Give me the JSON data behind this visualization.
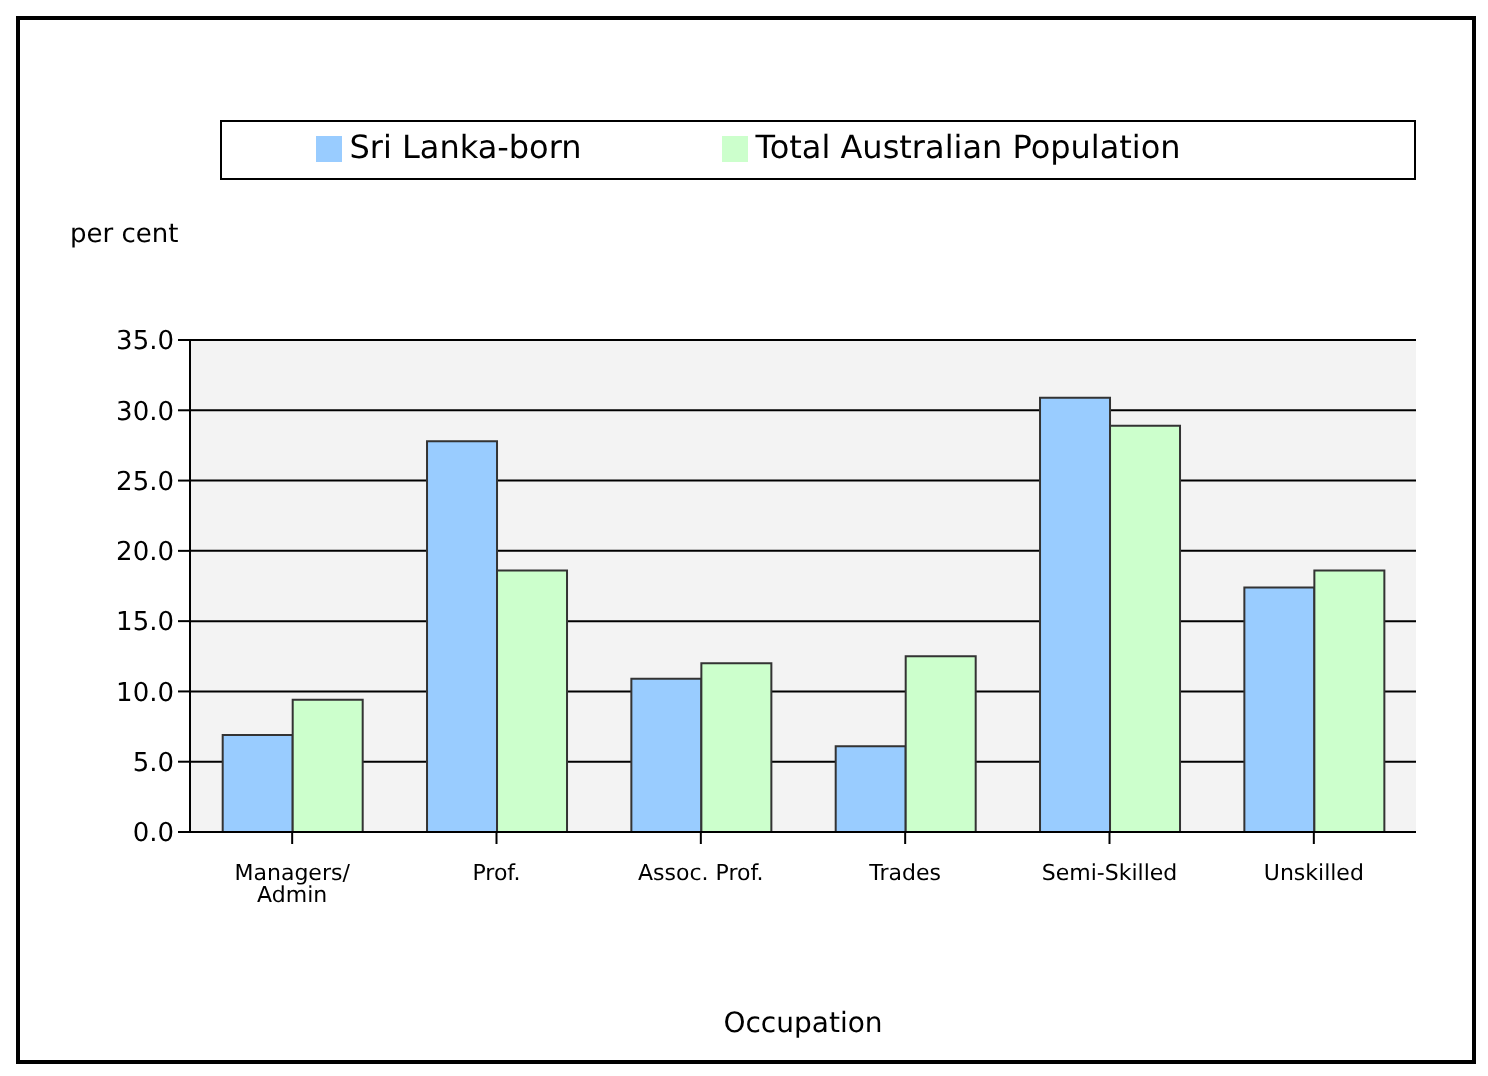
{
  "chart_data": {
    "type": "bar",
    "xlabel": "Occupation",
    "ylabel": "per cent",
    "categories": [
      "Managers/ Admin",
      "Prof.",
      "Assoc. Prof.",
      "Trades",
      "Semi-Skilled",
      "Unskilled"
    ],
    "series": [
      {
        "name": "Sri Lanka-born",
        "color": "#99ccff",
        "values": [
          6.9,
          27.8,
          10.9,
          6.1,
          30.9,
          17.4
        ]
      },
      {
        "name": "Total Australian Population",
        "color": "#ccffcc",
        "values": [
          9.4,
          18.6,
          12.0,
          12.5,
          28.9,
          18.6
        ]
      }
    ],
    "ylim": [
      0,
      35
    ],
    "yticks": [
      {
        "value": 0,
        "label": "0.0"
      },
      {
        "value": 5,
        "label": "5.0"
      },
      {
        "value": 10,
        "label": "10.0"
      },
      {
        "value": 15,
        "label": "15.0"
      },
      {
        "value": 20,
        "label": "20.0"
      },
      {
        "value": 25,
        "label": "25.0"
      },
      {
        "value": 30,
        "label": "30.0"
      },
      {
        "value": 35,
        "label": "35.0"
      }
    ],
    "grid": "y",
    "legend": "top"
  }
}
